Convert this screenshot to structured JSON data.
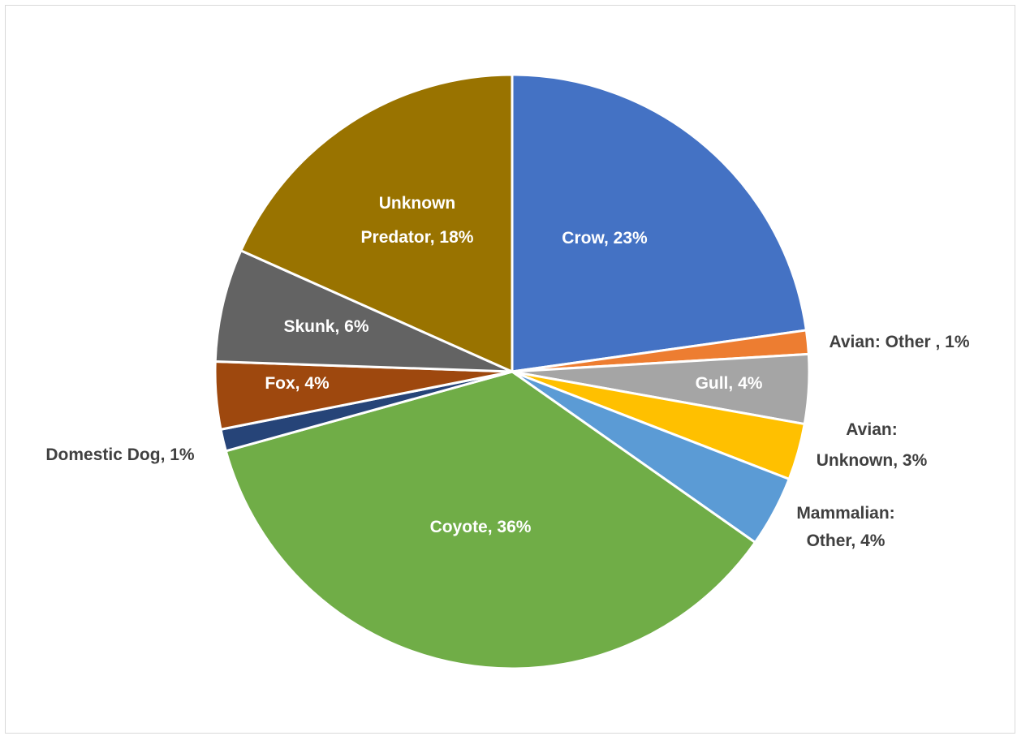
{
  "chart_data": {
    "type": "pie",
    "title": "",
    "slices": [
      {
        "name": "Crow",
        "label": "Crow, 23%",
        "value": 23,
        "color": "#4472C4",
        "label_inside": true
      },
      {
        "name": "Avian: Other ",
        "label": "Avian: Other , 1%",
        "value": 1.3,
        "color": "#ED7D31",
        "label_inside": false
      },
      {
        "name": "Gull",
        "label": "Gull, 4%",
        "value": 3.8,
        "color": "#A5A5A5",
        "label_inside": true
      },
      {
        "name": "Avian: Unknown",
        "label": "Avian: Unknown, 3%",
        "value": 3.1,
        "color": "#FFC000",
        "label_inside": false
      },
      {
        "name": "Mammalian: Other",
        "label": "Mammalian: Other, 4%",
        "value": 3.9,
        "color": "#5B9BD5",
        "label_inside": false
      },
      {
        "name": "Coyote",
        "label": "Coyote, 36%",
        "value": 36.3,
        "color": "#70AD47",
        "label_inside": true
      },
      {
        "name": "Domestic Dog",
        "label": "Domestic Dog, 1%",
        "value": 1.2,
        "color": "#264478",
        "label_inside": false
      },
      {
        "name": "Fox",
        "label": "Fox, 4%",
        "value": 3.7,
        "color": "#9E480E",
        "label_inside": true
      },
      {
        "name": "Skunk",
        "label": "Skunk, 6%",
        "value": 6.2,
        "color": "#636363",
        "label_inside": true
      },
      {
        "name": "Unknown Predator",
        "label": "Unknown Predator, 18%",
        "value": 18.5,
        "color": "#997300",
        "label_inside": true
      }
    ],
    "start_angle_deg": 0,
    "direction": "clockwise",
    "legend": "none"
  }
}
